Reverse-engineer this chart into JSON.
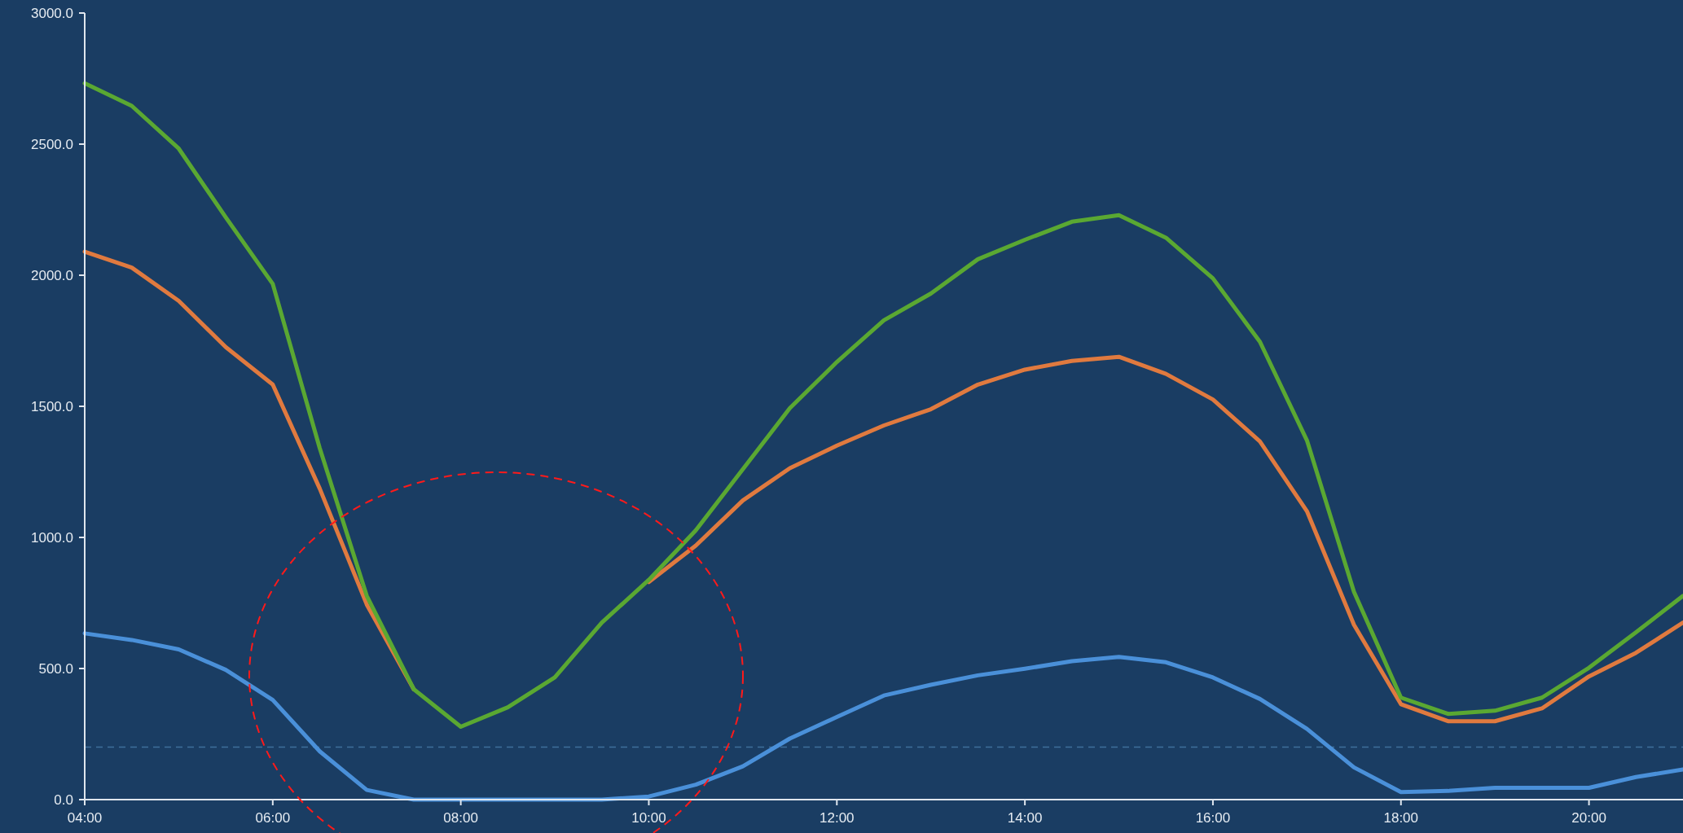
{
  "chart_data": {
    "type": "line",
    "x": [
      4,
      4.5,
      5,
      5.5,
      6,
      6.5,
      7,
      7.5,
      8,
      8.5,
      9,
      9.5,
      10,
      10.5,
      11,
      11.5,
      12,
      12.5,
      13,
      13.5,
      14,
      14.5,
      15,
      15.5,
      16,
      16.5,
      17,
      17.5,
      18,
      18.5,
      19,
      19.5,
      20,
      20.5,
      21
    ],
    "series": [
      {
        "color": "#4a90d9",
        "values": [
          634,
          609,
          573,
          495,
          380,
          184,
          37,
          0,
          0,
          0,
          0,
          0,
          12,
          57,
          127,
          233,
          315,
          397,
          438,
          474,
          499,
          528,
          544,
          524,
          466,
          384,
          270,
          123,
          29,
          33,
          45,
          45,
          45,
          86,
          115
        ]
      },
      {
        "color": "#e07a3f",
        "values": [
          2090,
          2029,
          1902,
          1726,
          1583,
          1186,
          744,
          421,
          null,
          null,
          null,
          null,
          830,
          969,
          1141,
          1264,
          1350,
          1427,
          1489,
          1583,
          1640,
          1673,
          1689,
          1624,
          1526,
          1366,
          1100,
          667,
          364,
          299,
          299,
          348,
          470,
          560,
          675
        ]
      },
      {
        "color": "#5aa832",
        "values": [
          2732,
          2646,
          2483,
          2221,
          1967,
          1340,
          777,
          421,
          278,
          352,
          466,
          675,
          838,
          1027,
          1260,
          1493,
          1669,
          1828,
          1930,
          2061,
          2135,
          2204,
          2229,
          2143,
          1988,
          1746,
          1370,
          793,
          389,
          327,
          339,
          389,
          503,
          638,
          777
        ]
      }
    ],
    "xlim": [
      4,
      21
    ],
    "xticks": [
      {
        "value": 4,
        "label": "04:00"
      },
      {
        "value": 6,
        "label": "06:00"
      },
      {
        "value": 8,
        "label": "08:00"
      },
      {
        "value": 10,
        "label": "10:00"
      },
      {
        "value": 12,
        "label": "12:00"
      },
      {
        "value": 14,
        "label": "14:00"
      },
      {
        "value": 16,
        "label": "16:00"
      },
      {
        "value": 18,
        "label": "18:00"
      },
      {
        "value": 20,
        "label": "20:00"
      }
    ],
    "ylim": [
      0,
      3000
    ],
    "yticks": [
      {
        "value": 0,
        "label": "0.0"
      },
      {
        "value": 500,
        "label": "500.0"
      },
      {
        "value": 1000,
        "label": "1000.0"
      },
      {
        "value": 1500,
        "label": "1500.0"
      },
      {
        "value": 2000,
        "label": "2000.0"
      },
      {
        "value": 2500,
        "label": "2500.0"
      },
      {
        "value": 3000,
        "label": "3000.0"
      }
    ],
    "ref_lines": [
      {
        "axis": "y",
        "value": 200,
        "color": "#3f6f9a",
        "line_style": "dashed"
      }
    ],
    "grid": false,
    "marker": "none",
    "line_style": "solid"
  }
}
